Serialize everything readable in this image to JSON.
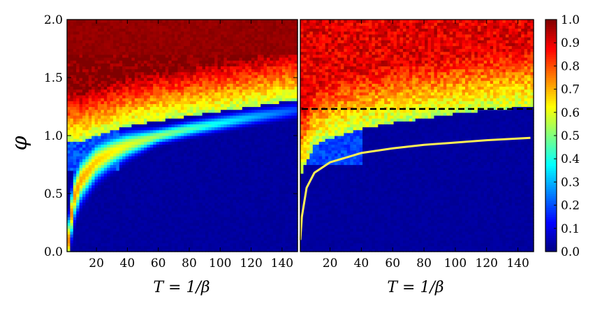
{
  "chart_data": {
    "type": "heatmap",
    "colormap": "jet",
    "color_range": [
      0.0,
      1.0
    ],
    "panels": [
      {
        "name": "left",
        "xlabel": "T = 1/β",
        "ylabel": "φ",
        "xlim": [
          1,
          150
        ],
        "ylim": [
          0.0,
          2.0
        ],
        "x_ticks": [
          20,
          40,
          60,
          80,
          100,
          120,
          140
        ],
        "y_ticks": [
          0.0,
          0.5,
          1.0,
          1.5,
          2.0
        ],
        "y_tick_labels": [
          "0.0",
          "0.5",
          "1.0",
          "1.5",
          "2.0"
        ],
        "boundary_phi": {
          "T": [
            1,
            10,
            20,
            40,
            60,
            80,
            100,
            120,
            140,
            148
          ],
          "phi": [
            0.95,
            0.95,
            1.0,
            1.08,
            1.13,
            1.17,
            1.21,
            1.25,
            1.29,
            1.31
          ]
        },
        "ridge_phi": {
          "T": [
            2,
            5,
            10,
            20,
            30,
            40,
            60,
            80,
            100,
            120,
            148
          ],
          "phi": [
            0.1,
            0.45,
            0.62,
            0.78,
            0.86,
            0.92,
            1.0,
            1.06,
            1.11,
            1.16,
            1.22
          ]
        }
      },
      {
        "name": "right",
        "xlabel": "T = 1/β",
        "xlim": [
          1,
          150
        ],
        "ylim": [
          0.0,
          2.0
        ],
        "x_ticks": [
          20,
          40,
          60,
          80,
          100,
          120,
          140
        ],
        "dashed_line_phi": 1.23,
        "boundary_phi": {
          "T": [
            1,
            10,
            20,
            30,
            40,
            60,
            80,
            100,
            120,
            148
          ],
          "phi": [
            0.65,
            0.92,
            0.98,
            1.02,
            1.06,
            1.11,
            1.15,
            1.19,
            1.22,
            1.25
          ]
        },
        "yellow_curve": {
          "T": [
            1,
            2,
            5,
            10,
            20,
            40,
            60,
            80,
            100,
            120,
            148
          ],
          "phi": [
            0.1,
            0.3,
            0.55,
            0.68,
            0.77,
            0.85,
            0.89,
            0.92,
            0.94,
            0.96,
            0.98
          ]
        }
      }
    ],
    "colorbar": {
      "ticks": [
        0.0,
        0.1,
        0.2,
        0.3,
        0.4,
        0.5,
        0.6,
        0.7,
        0.8,
        0.9,
        1.0
      ],
      "tick_labels": [
        "0.0",
        "0.1",
        "0.2",
        "0.3",
        "0.4",
        "0.5",
        "0.6",
        "0.7",
        "0.8",
        "0.9",
        "1.0"
      ]
    }
  }
}
